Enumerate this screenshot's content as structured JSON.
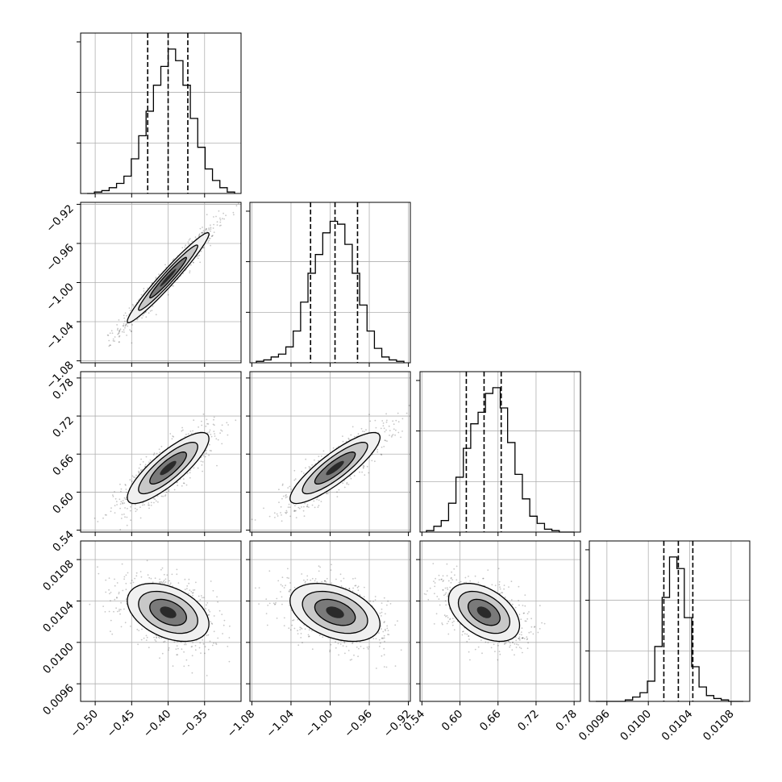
{
  "chart_data": {
    "type": "corner",
    "grid": true,
    "parameters": [
      {
        "ticks": [
          -0.5,
          -0.45,
          -0.4,
          -0.35
        ],
        "tick_labels": [
          "−0.50",
          "−0.45",
          "−0.40",
          "−0.35"
        ],
        "range": [
          -0.52,
          -0.3
        ],
        "quantiles": [
          -0.428,
          -0.4,
          -0.373
        ],
        "hist": [
          0.0,
          0.01,
          0.02,
          0.04,
          0.07,
          0.12,
          0.24,
          0.4,
          0.57,
          0.75,
          0.88,
          1.0,
          0.92,
          0.75,
          0.52,
          0.32,
          0.17,
          0.09,
          0.04,
          0.01
        ]
      },
      {
        "ticks": [
          -1.08,
          -1.04,
          -1.0,
          -0.96,
          -0.92
        ],
        "tick_labels": [
          "−1.08",
          "−1.04",
          "−1.00",
          "−0.96",
          "−0.92"
        ],
        "range": [
          -1.082,
          -0.918
        ],
        "quantiles": [
          -1.02,
          -0.995,
          -0.972
        ],
        "hist": [
          0.01,
          0.02,
          0.04,
          0.06,
          0.11,
          0.22,
          0.42,
          0.62,
          0.75,
          0.9,
          0.98,
          0.96,
          0.82,
          0.62,
          0.4,
          0.22,
          0.1,
          0.04,
          0.02,
          0.01
        ]
      },
      {
        "ticks": [
          0.54,
          0.6,
          0.66,
          0.72,
          0.78
        ],
        "tick_labels": [
          "0.54",
          "0.60",
          "0.66",
          "0.72",
          "0.78"
        ],
        "range": [
          0.537,
          0.79
        ],
        "quantiles": [
          0.61,
          0.638,
          0.665
        ],
        "hist": [
          0.01,
          0.04,
          0.08,
          0.2,
          0.38,
          0.58,
          0.75,
          0.83,
          0.96,
          1.0,
          0.86,
          0.62,
          0.4,
          0.23,
          0.11,
          0.06,
          0.02,
          0.01,
          0.0,
          0.0
        ]
      },
      {
        "ticks": [
          0.0096,
          0.01,
          0.0104,
          0.0108
        ],
        "tick_labels": [
          "0.0096",
          "0.0100",
          "0.0104",
          "0.0108"
        ],
        "range": [
          0.00943,
          0.01098
        ],
        "quantiles": [
          0.01015,
          0.01029,
          0.01043
        ],
        "hist": [
          0.0,
          0.0,
          0.0,
          0.0,
          0.01,
          0.03,
          0.06,
          0.14,
          0.38,
          0.72,
          1.0,
          0.92,
          0.58,
          0.24,
          0.1,
          0.04,
          0.02,
          0.01,
          0.0,
          0.0
        ]
      }
    ],
    "pairs": [
      {
        "x": 0,
        "y": 1,
        "mean": [
          -0.4,
          -0.995
        ],
        "sd": [
          0.028,
          0.023
        ],
        "rho": 0.97
      },
      {
        "x": 0,
        "y": 2,
        "mean": [
          -0.4,
          0.638
        ],
        "sd": [
          0.028,
          0.028
        ],
        "rho": 0.83
      },
      {
        "x": 1,
        "y": 2,
        "mean": [
          -0.995,
          0.638
        ],
        "sd": [
          0.023,
          0.028
        ],
        "rho": 0.86
      },
      {
        "x": 0,
        "y": 3,
        "mean": [
          -0.4,
          0.01029
        ],
        "sd": [
          0.028,
          0.00014
        ],
        "rho": -0.4
      },
      {
        "x": 1,
        "y": 3,
        "mean": [
          -0.995,
          0.01029
        ],
        "sd": [
          0.023,
          0.00014
        ],
        "rho": -0.4
      },
      {
        "x": 2,
        "y": 3,
        "mean": [
          0.638,
          0.01029
        ],
        "sd": [
          0.028,
          0.00014
        ],
        "rho": -0.45
      }
    ]
  },
  "colors": {
    "background": "#ffffff",
    "grid": "#b0b0b0",
    "ink": "#000000"
  }
}
